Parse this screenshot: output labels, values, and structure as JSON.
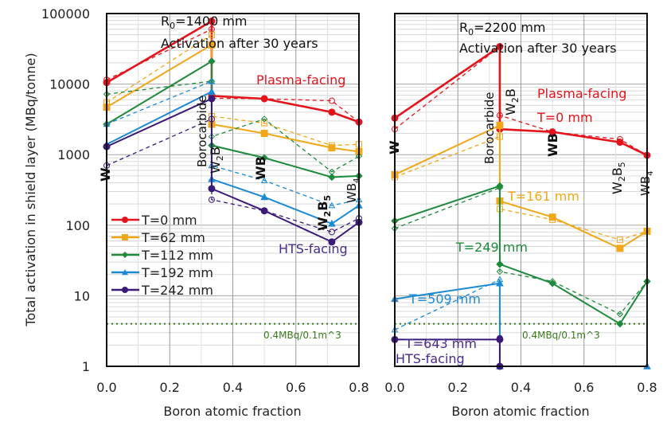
{
  "chart_data": [
    {
      "type": "line",
      "panel": "left",
      "annotation_lines": [
        "R0=1400 mm",
        "Activation after 30 years"
      ],
      "annotation_title_parts": {
        "R": "R",
        "sub": "0",
        "rest": "=1400 mm"
      },
      "xlabel": "Boron atomic fraction",
      "ylabel": "Total activation in shield layer (MBq/tonne)",
      "xlim": [
        0,
        0.8
      ],
      "ylim": [
        1,
        100000
      ],
      "yscale": "log",
      "x_ticks": [
        "0.0",
        "0.2",
        "0.4",
        "0.6",
        "0.8"
      ],
      "x_tick_values": [
        0,
        0.2,
        0.4,
        0.6,
        0.8
      ],
      "y_ticks": [
        "1",
        "10",
        "100",
        "1000",
        "10000",
        "100000"
      ],
      "y_tick_values": [
        1,
        10,
        100,
        1000,
        10000,
        100000
      ],
      "grid": true,
      "legend_position": "left-middle",
      "x": [
        0,
        0.333,
        0.333,
        0.5,
        0.714,
        0.8
      ],
      "series": [
        {
          "name": "T=0 mm",
          "color": "#e3141c",
          "marker": "circle",
          "solid": [
            10500,
            78000,
            6800,
            6200,
            4000,
            2900
          ],
          "dashed": [
            11500,
            60000,
            6300,
            6200,
            5800,
            2900
          ]
        },
        {
          "name": "T=62 mm",
          "color": "#f0a818",
          "marker": "square",
          "solid": [
            4700,
            36000,
            2700,
            2000,
            1250,
            1100
          ],
          "dashed": [
            5500,
            50000,
            3500,
            2800,
            1350,
            1400
          ]
        },
        {
          "name": "T=112 mm",
          "color": "#1e8a3c",
          "marker": "diamond",
          "solid": [
            2700,
            21000,
            1350,
            900,
            480,
            500
          ],
          "dashed": [
            7200,
            11000,
            1800,
            3200,
            570,
            950
          ]
        },
        {
          "name": "T=192 mm",
          "color": "#1a8ad4",
          "marker": "triangle",
          "solid": [
            1400,
            7800,
            450,
            250,
            105,
            190
          ],
          "dashed": [
            2700,
            11000,
            700,
            430,
            190,
            230
          ]
        },
        {
          "name": "T=242 mm",
          "color": "#3b1a78",
          "marker": "circle",
          "solid": [
            1300,
            6200,
            330,
            160,
            58,
            110
          ],
          "dashed": [
            700,
            3200,
            230,
            160,
            80,
            125
          ]
        }
      ],
      "phase_labels": [
        "W",
        "Borocarbide",
        "W2B",
        "WB",
        "W2B5",
        "WB4"
      ],
      "text_labels": {
        "plasma": "Plasma-facing",
        "hts": "HTS-facing",
        "limit": "0.4MBq/0.1m^3"
      },
      "limit_value": 4,
      "limit_color": "#3a7a1c"
    },
    {
      "type": "line",
      "panel": "right",
      "annotation_lines": [
        "R0=2200 mm",
        "Activation after 30 years"
      ],
      "annotation_title_parts": {
        "R": "R",
        "sub": "0",
        "rest": "=2200 mm"
      },
      "xlabel": "Boron atomic fraction",
      "xlim": [
        0,
        0.8
      ],
      "ylim": [
        1,
        100000
      ],
      "yscale": "log",
      "x_ticks": [
        "0.0",
        "0.2",
        "0.4",
        "0.6",
        "0.8"
      ],
      "x_tick_values": [
        0,
        0.2,
        0.4,
        0.6,
        0.8
      ],
      "grid": true,
      "x": [
        0,
        0.333,
        0.333,
        0.5,
        0.714,
        0.8
      ],
      "series": [
        {
          "name": "T=0 mm",
          "color": "#e3141c",
          "marker": "circle",
          "solid": [
            3300,
            34000,
            2300,
            2100,
            1500,
            980
          ],
          "dashed": [
            2300,
            34000,
            3600,
            2100,
            1650,
            980
          ]
        },
        {
          "name": "T=161 mm",
          "color": "#f0a818",
          "marker": "square",
          "solid": [
            520,
            2600,
            220,
            130,
            47,
            82
          ],
          "dashed": [
            480,
            1800,
            170,
            120,
            62,
            82
          ]
        },
        {
          "name": "T=249 mm",
          "color": "#1e8a3c",
          "marker": "diamond",
          "solid": [
            115,
            360,
            28,
            15,
            4,
            16
          ],
          "dashed": [
            90,
            340,
            22,
            16,
            5.5,
            16
          ]
        },
        {
          "name": "T=509 mm",
          "color": "#1a8ad4",
          "marker": "triangle",
          "solid": [
            9,
            15,
            1,
            null,
            null,
            1
          ],
          "dashed": [
            3.3,
            17,
            1,
            null,
            null,
            1
          ]
        },
        {
          "name": "T=643 mm",
          "color": "#3b1a78",
          "marker": "circle",
          "solid": [
            2.4,
            2.4,
            1,
            null,
            null,
            null
          ],
          "dashed": [
            null,
            2.5,
            null,
            null,
            null,
            null
          ]
        }
      ],
      "phase_labels": [
        "W",
        "Borocarbide",
        "W2B",
        "WB",
        "W2B5",
        "WB4"
      ],
      "text_labels": {
        "plasma": "Plasma-facing",
        "plasma_t": "T=0 mm",
        "t161": "T=161 mm",
        "t249": "T=249 mm",
        "t509": "T=509 mm",
        "t643": "T=643 mm",
        "hts": "HTS-facing",
        "limit": "0.4MBq/0.1m^3"
      },
      "limit_value": 4,
      "limit_color": "#3a7a1c"
    }
  ]
}
